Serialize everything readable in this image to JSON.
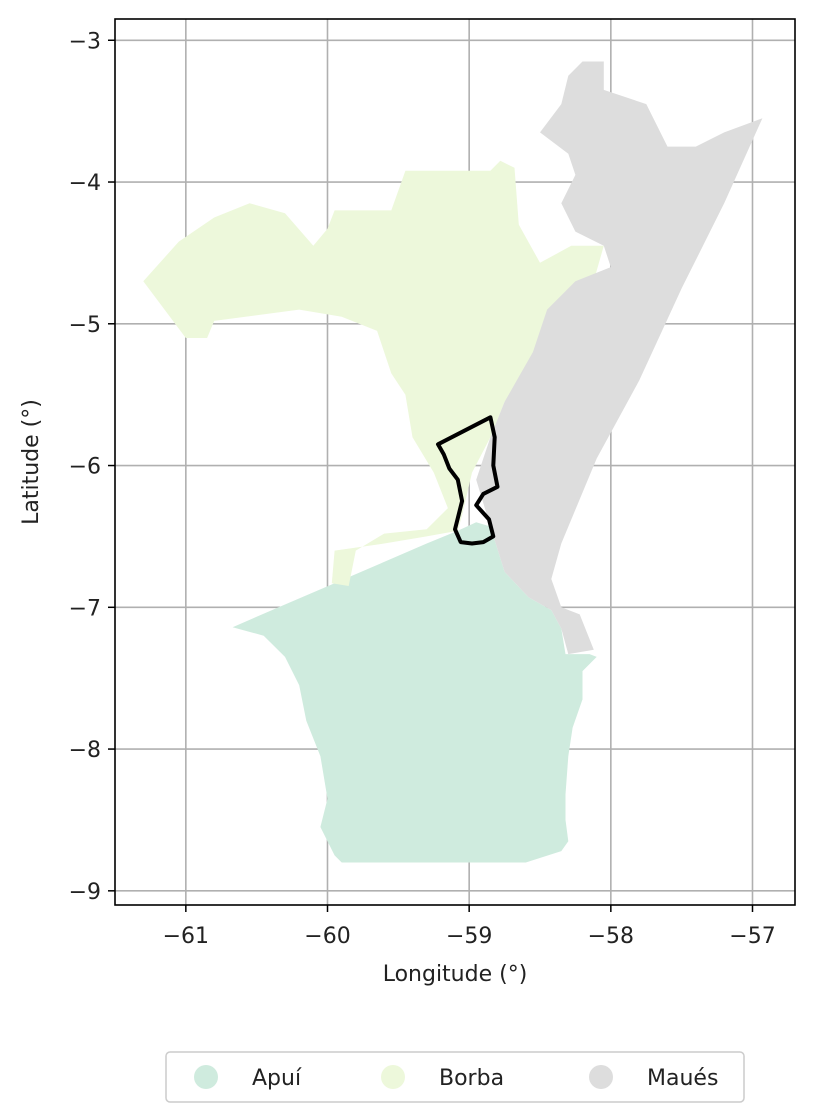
{
  "chart_data": {
    "type": "choropleth-map",
    "xlabel": "Longitude (°)",
    "ylabel": "Latitude (°)",
    "xlim": [
      -61.5,
      -56.7
    ],
    "ylim": [
      -9.1,
      -2.85
    ],
    "grid": true,
    "x_ticks": [
      -61,
      -60,
      -59,
      -58,
      -57
    ],
    "y_ticks": [
      -3,
      -4,
      -5,
      -6,
      -7,
      -8,
      -9
    ],
    "x_tick_labels": [
      "−61",
      "−60",
      "−59",
      "−58",
      "−57"
    ],
    "y_tick_labels": [
      "−3",
      "−4",
      "−5",
      "−6",
      "−7",
      "−8",
      "−9"
    ],
    "legend_placement": "bottom-center",
    "regions": [
      {
        "name": "Apuí",
        "color": "#cfebde",
        "coordinates": [
          [
            -60.67,
            -7.14
          ],
          [
            -60.3,
            -6.98
          ],
          [
            -59.95,
            -6.83
          ],
          [
            -59.6,
            -6.68
          ],
          [
            -59.3,
            -6.55
          ],
          [
            -59.08,
            -6.46
          ],
          [
            -58.95,
            -6.4
          ],
          [
            -58.85,
            -6.43
          ],
          [
            -58.75,
            -6.75
          ],
          [
            -58.58,
            -6.93
          ],
          [
            -58.42,
            -7.02
          ],
          [
            -58.35,
            -7.15
          ],
          [
            -58.32,
            -7.33
          ],
          [
            -58.15,
            -7.33
          ],
          [
            -58.1,
            -7.35
          ],
          [
            -58.2,
            -7.45
          ],
          [
            -58.2,
            -7.65
          ],
          [
            -58.27,
            -7.85
          ],
          [
            -58.3,
            -8.05
          ],
          [
            -58.32,
            -8.32
          ],
          [
            -58.32,
            -8.5
          ],
          [
            -58.3,
            -8.65
          ],
          [
            -58.35,
            -8.72
          ],
          [
            -58.6,
            -8.8
          ],
          [
            -59.2,
            -8.8
          ],
          [
            -59.9,
            -8.8
          ],
          [
            -59.95,
            -8.75
          ],
          [
            -60.05,
            -8.55
          ],
          [
            -60.0,
            -8.35
          ],
          [
            -60.05,
            -8.05
          ],
          [
            -60.15,
            -7.8
          ],
          [
            -60.2,
            -7.55
          ],
          [
            -60.3,
            -7.35
          ],
          [
            -60.45,
            -7.2
          ],
          [
            -60.67,
            -7.14
          ]
        ]
      },
      {
        "name": "Borba",
        "color": "#edf8db",
        "coordinates": [
          [
            -61.3,
            -4.7
          ],
          [
            -61.05,
            -4.42
          ],
          [
            -60.8,
            -4.25
          ],
          [
            -60.55,
            -4.15
          ],
          [
            -60.3,
            -4.22
          ],
          [
            -60.1,
            -4.45
          ],
          [
            -60.0,
            -4.33
          ],
          [
            -59.95,
            -4.2
          ],
          [
            -59.55,
            -4.2
          ],
          [
            -59.45,
            -3.92
          ],
          [
            -58.85,
            -3.92
          ],
          [
            -58.78,
            -3.85
          ],
          [
            -58.68,
            -3.9
          ],
          [
            -58.65,
            -4.3
          ],
          [
            -58.5,
            -4.57
          ],
          [
            -58.28,
            -4.45
          ],
          [
            -58.05,
            -4.45
          ],
          [
            -58.15,
            -4.8
          ],
          [
            -58.45,
            -5.1
          ],
          [
            -58.6,
            -5.35
          ],
          [
            -58.75,
            -5.55
          ],
          [
            -58.85,
            -5.8
          ],
          [
            -58.98,
            -6.05
          ],
          [
            -59.05,
            -6.35
          ],
          [
            -59.08,
            -6.46
          ],
          [
            -59.3,
            -6.5
          ],
          [
            -59.6,
            -6.55
          ],
          [
            -59.95,
            -6.6
          ],
          [
            -59.97,
            -6.83
          ],
          [
            -59.85,
            -6.85
          ],
          [
            -59.8,
            -6.6
          ],
          [
            -59.6,
            -6.48
          ],
          [
            -59.3,
            -6.45
          ],
          [
            -59.15,
            -6.3
          ],
          [
            -59.25,
            -6.05
          ],
          [
            -59.4,
            -5.8
          ],
          [
            -59.45,
            -5.5
          ],
          [
            -59.55,
            -5.35
          ],
          [
            -59.65,
            -5.05
          ],
          [
            -59.9,
            -4.95
          ],
          [
            -60.2,
            -4.9
          ],
          [
            -60.8,
            -4.98
          ],
          [
            -60.85,
            -5.1
          ],
          [
            -61.0,
            -5.1
          ],
          [
            -61.3,
            -4.7
          ]
        ]
      },
      {
        "name": "Maués",
        "color": "#dddddd",
        "coordinates": [
          [
            -58.2,
            -3.15
          ],
          [
            -58.05,
            -3.15
          ],
          [
            -58.05,
            -3.35
          ],
          [
            -57.75,
            -3.45
          ],
          [
            -57.6,
            -3.75
          ],
          [
            -57.4,
            -3.75
          ],
          [
            -57.2,
            -3.65
          ],
          [
            -56.93,
            -3.55
          ],
          [
            -57.2,
            -4.15
          ],
          [
            -57.5,
            -4.75
          ],
          [
            -57.8,
            -5.4
          ],
          [
            -58.1,
            -5.95
          ],
          [
            -58.35,
            -6.55
          ],
          [
            -58.42,
            -6.8
          ],
          [
            -58.35,
            -7.0
          ],
          [
            -58.22,
            -7.05
          ],
          [
            -58.12,
            -7.3
          ],
          [
            -58.3,
            -7.33
          ],
          [
            -58.35,
            -7.15
          ],
          [
            -58.42,
            -7.02
          ],
          [
            -58.58,
            -6.93
          ],
          [
            -58.75,
            -6.75
          ],
          [
            -58.85,
            -6.43
          ],
          [
            -58.95,
            -6.1
          ],
          [
            -58.85,
            -5.8
          ],
          [
            -58.75,
            -5.55
          ],
          [
            -58.55,
            -5.2
          ],
          [
            -58.45,
            -4.9
          ],
          [
            -58.25,
            -4.7
          ],
          [
            -58.0,
            -4.6
          ],
          [
            -58.05,
            -4.45
          ],
          [
            -58.25,
            -4.35
          ],
          [
            -58.35,
            -4.15
          ],
          [
            -58.25,
            -3.95
          ],
          [
            -58.3,
            -3.8
          ],
          [
            -58.5,
            -3.65
          ],
          [
            -58.35,
            -3.45
          ],
          [
            -58.3,
            -3.25
          ],
          [
            -58.2,
            -3.15
          ]
        ]
      }
    ],
    "outline": {
      "color": "#000000",
      "coordinates": [
        [
          -59.22,
          -5.85
        ],
        [
          -58.85,
          -5.66
        ],
        [
          -58.82,
          -5.8
        ],
        [
          -58.83,
          -6.0
        ],
        [
          -58.8,
          -6.15
        ],
        [
          -58.9,
          -6.2
        ],
        [
          -58.95,
          -6.28
        ],
        [
          -58.86,
          -6.38
        ],
        [
          -58.83,
          -6.5
        ],
        [
          -58.9,
          -6.54
        ],
        [
          -58.98,
          -6.55
        ],
        [
          -59.06,
          -6.54
        ],
        [
          -59.1,
          -6.45
        ],
        [
          -59.05,
          -6.25
        ],
        [
          -59.08,
          -6.1
        ],
        [
          -59.14,
          -6.02
        ],
        [
          -59.18,
          -5.92
        ],
        [
          -59.22,
          -5.85
        ]
      ]
    }
  }
}
